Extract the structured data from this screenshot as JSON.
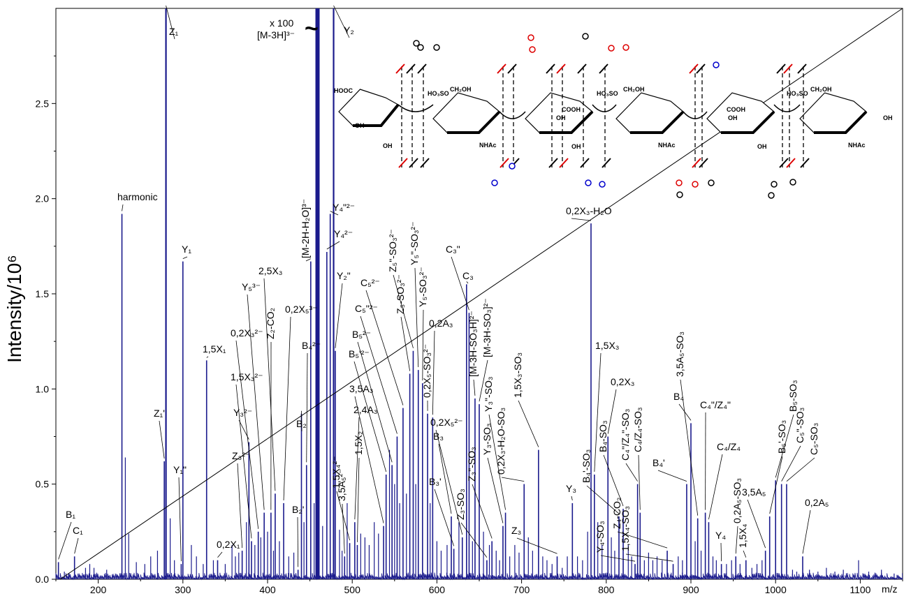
{
  "chart_data": {
    "type": "line",
    "ylabel": "Intensity/10⁶",
    "xunit": "m/z",
    "xlim": [
      150,
      1150
    ],
    "ylim": [
      0,
      3.0
    ],
    "xticks": [
      200,
      300,
      400,
      500,
      600,
      700,
      800,
      900,
      1000,
      1100
    ],
    "yticks": [
      0.0,
      0.5,
      1.0,
      1.5,
      2.0,
      2.5
    ],
    "line_color": "#1a1a8c",
    "peaks": [
      {
        "x": 153,
        "y": 0.09,
        "label": "B₁"
      },
      {
        "x": 172,
        "y": 0.12,
        "label": "C₁"
      },
      {
        "x": 228,
        "y": 1.92,
        "label": "harmonic"
      },
      {
        "x": 280,
        "y": 3.0,
        "label": "Z₁"
      },
      {
        "x": 278,
        "y": 0.62,
        "label": "Z₁'"
      },
      {
        "x": 298,
        "y": 0.08,
        "label": "Y₁\""
      },
      {
        "x": 300,
        "y": 1.67,
        "label": "Y₁"
      },
      {
        "x": 328,
        "y": 1.15,
        "label": "1,5X₁"
      },
      {
        "x": 341,
        "y": 0.1,
        "label": "0,2X₁"
      },
      {
        "x": 370,
        "y": 0.15,
        "label": "Z₃²⁻"
      },
      {
        "x": 378,
        "y": 0.72,
        "label": "Y₃²⁻"
      },
      {
        "x": 381,
        "y": 0.2,
        "label": "1,5X₃²⁻"
      },
      {
        "x": 389,
        "y": 0.25,
        "label": "0,2X₃²⁻"
      },
      {
        "x": 396,
        "y": 0.35,
        "label": "Y₅³⁻"
      },
      {
        "x": 404,
        "y": 0.35,
        "label": "Z₂-CO₂"
      },
      {
        "x": 409,
        "y": 0.45,
        "label": "2,5X₃"
      },
      {
        "x": 419,
        "y": 0.4,
        "label": "0,2X₅³⁻"
      },
      {
        "x": 436,
        "y": 0.05,
        "label": "B₂'"
      },
      {
        "x": 440,
        "y": 0.87,
        "label": "B₂"
      },
      {
        "x": 446,
        "y": 0.6,
        "label": "B₄²⁻"
      },
      {
        "x": 451,
        "y": 1.67,
        "label": "[M-2H-H₂O]³⁻"
      },
      {
        "x": 460,
        "y": 3.0,
        "label": "[M-3H]³⁻"
      },
      {
        "x": 470,
        "y": 1.72,
        "label": "Y₄²⁻"
      },
      {
        "x": 474,
        "y": 1.92,
        "label": "Y₄\"²⁻"
      },
      {
        "x": 478,
        "y": 3.0,
        "label": "Y₂"
      },
      {
        "x": 480,
        "y": 1.2,
        "label": "Y₂\""
      },
      {
        "x": 491,
        "y": 0.12,
        "label": "3,5A₅²⁻"
      },
      {
        "x": 497,
        "y": 0.19,
        "label": "1,5X₄²⁻"
      },
      {
        "x": 503,
        "y": 0.3,
        "label": "2,4A₃"
      },
      {
        "x": 506,
        "y": 0.18,
        "label": "1,5X₂"
      },
      {
        "x": 537,
        "y": 0.28,
        "label": "3,5A₃"
      },
      {
        "x": 540,
        "y": 0.55,
        "label": "B₅'²⁻"
      },
      {
        "x": 547,
        "y": 0.6,
        "label": "B₅²⁻"
      },
      {
        "x": 553,
        "y": 0.75,
        "label": "C₅\"²⁻"
      },
      {
        "x": 560,
        "y": 0.9,
        "label": "C₅²⁻"
      },
      {
        "x": 568,
        "y": 1.08,
        "label": "Z₅-SO₃²⁻"
      },
      {
        "x": 572,
        "y": 1.2,
        "label": "Z₅\"-SO₃²⁻"
      },
      {
        "x": 578,
        "y": 1.1,
        "label": "Y₅\"-SO₃²⁻"
      },
      {
        "x": 583,
        "y": 1.03,
        "label": "Y₅-SO₃²⁻"
      },
      {
        "x": 589,
        "y": 0.87,
        "label": "0,2X₅-SO₃²⁻"
      },
      {
        "x": 595,
        "y": 0.85,
        "label": "0,2A₃"
      },
      {
        "x": 617,
        "y": 0.33,
        "label": "B₃"
      },
      {
        "x": 620,
        "y": 0.16,
        "label": "B₃'"
      },
      {
        "x": 630,
        "y": 0.22,
        "label": "0,2X₅²⁻"
      },
      {
        "x": 635,
        "y": 1.55,
        "label": "C₃"
      },
      {
        "x": 638,
        "y": 1.4,
        "label": "C₃\""
      },
      {
        "x": 645,
        "y": 0.95,
        "label": "[M-3H-SO₃H]²⁻"
      },
      {
        "x": 650,
        "y": 0.92,
        "label": "[M-3H-SO₃]²⁻"
      },
      {
        "x": 659,
        "y": 0.1,
        "label": "Z₃-SO₃"
      },
      {
        "x": 665,
        "y": 0.2,
        "label": "Z₃\"-SO₃"
      },
      {
        "x": 678,
        "y": 0.28,
        "label": "Y₃-SO₃"
      },
      {
        "x": 681,
        "y": 0.35,
        "label": "Y₃\"-SO₃"
      },
      {
        "x": 703,
        "y": 0.5,
        "label": "0,2X₃-H₂O-SO₃"
      },
      {
        "x": 720,
        "y": 0.68,
        "label": "1,5X₃-SO₃"
      },
      {
        "x": 742,
        "y": 0.12,
        "label": "Z₃"
      },
      {
        "x": 760,
        "y": 0.4,
        "label": "Y₃"
      },
      {
        "x": 782,
        "y": 1.87,
        "label": "0,2X₃-H₂O"
      },
      {
        "x": 786,
        "y": 0.55,
        "label": "1,5X₃"
      },
      {
        "x": 802,
        "y": 0.75,
        "label": "0,2X₃"
      },
      {
        "x": 815,
        "y": 0.33,
        "label": "B₄'-SO₃"
      },
      {
        "x": 820,
        "y": 0.37,
        "label": "B₄-SO₃"
      },
      {
        "x": 834,
        "y": 0.08,
        "label": "Y₄-SO₃"
      },
      {
        "x": 837,
        "y": 0.5,
        "label": "C₄\"/Z₄\"-SO₃"
      },
      {
        "x": 840,
        "y": 0.35,
        "label": "C₄/Z₄-SO₃"
      },
      {
        "x": 872,
        "y": 0.15,
        "label": "Z₄-CO₂"
      },
      {
        "x": 879,
        "y": 0.08,
        "label": "1,5X₄-SO₃"
      },
      {
        "x": 895,
        "y": 0.5,
        "label": "B₄'"
      },
      {
        "x": 900,
        "y": 0.82,
        "label": "B₄"
      },
      {
        "x": 908,
        "y": 0.32,
        "label": "3,5A₅-SO₃"
      },
      {
        "x": 917,
        "y": 0.35,
        "label": "C₄\"/Z₄\""
      },
      {
        "x": 921,
        "y": 0.3,
        "label": "C₄/Z₄"
      },
      {
        "x": 936,
        "y": 0.08,
        "label": "Y₄"
      },
      {
        "x": 953,
        "y": 0.12,
        "label": "0,2A₅-SO₃"
      },
      {
        "x": 965,
        "y": 0.1,
        "label": "1,5X₄"
      },
      {
        "x": 988,
        "y": 0.15,
        "label": "3,5A₅"
      },
      {
        "x": 993,
        "y": 0.33,
        "label": "B₅'-SO₃"
      },
      {
        "x": 1000,
        "y": 0.52,
        "label": "B₅-SO₃"
      },
      {
        "x": 1007,
        "y": 0.5,
        "label": "C₅\"-SO₃"
      },
      {
        "x": 1013,
        "y": 0.5,
        "label": "C₅-SO₃"
      },
      {
        "x": 1032,
        "y": 0.12,
        "label": "0,2A₅"
      }
    ],
    "minor_peaks": [
      [
        160,
        0.04
      ],
      [
        165,
        0.03
      ],
      [
        185,
        0.06
      ],
      [
        190,
        0.08
      ],
      [
        195,
        0.06
      ],
      [
        210,
        0.05
      ],
      [
        232,
        0.64
      ],
      [
        236,
        0.24
      ],
      [
        245,
        0.09
      ],
      [
        255,
        0.08
      ],
      [
        262,
        0.12
      ],
      [
        270,
        0.15
      ],
      [
        285,
        0.32
      ],
      [
        290,
        0.1
      ],
      [
        310,
        0.18
      ],
      [
        316,
        0.12
      ],
      [
        324,
        0.08
      ],
      [
        336,
        0.1
      ],
      [
        350,
        0.08
      ],
      [
        358,
        0.18
      ],
      [
        362,
        0.12
      ],
      [
        366,
        0.14
      ],
      [
        375,
        0.3
      ],
      [
        385,
        0.18
      ],
      [
        392,
        0.22
      ],
      [
        400,
        0.25
      ],
      [
        407,
        0.15
      ],
      [
        414,
        0.2
      ],
      [
        425,
        0.12
      ],
      [
        431,
        0.14
      ],
      [
        443,
        0.3
      ],
      [
        455,
        0.4
      ],
      [
        465,
        0.28
      ],
      [
        485,
        0.26
      ],
      [
        488,
        0.15
      ],
      [
        494,
        0.4
      ],
      [
        510,
        0.24
      ],
      [
        515,
        0.22
      ],
      [
        520,
        0.18
      ],
      [
        526,
        0.3
      ],
      [
        531,
        0.24
      ],
      [
        544,
        0.68
      ],
      [
        550,
        0.5
      ],
      [
        556,
        0.4
      ],
      [
        564,
        0.45
      ],
      [
        575,
        0.5
      ],
      [
        592,
        0.4
      ],
      [
        600,
        0.2
      ],
      [
        605,
        0.15
      ],
      [
        612,
        0.18
      ],
      [
        626,
        0.3
      ],
      [
        642,
        0.2
      ],
      [
        655,
        0.25
      ],
      [
        662,
        0.18
      ],
      [
        670,
        0.15
      ],
      [
        674,
        0.1
      ],
      [
        686,
        0.12
      ],
      [
        692,
        0.18
      ],
      [
        697,
        0.14
      ],
      [
        708,
        0.22
      ],
      [
        713,
        0.15
      ],
      [
        725,
        0.12
      ],
      [
        730,
        0.1
      ],
      [
        736,
        0.08
      ],
      [
        748,
        0.06
      ],
      [
        754,
        0.12
      ],
      [
        766,
        0.12
      ],
      [
        772,
        0.1
      ],
      [
        778,
        0.25
      ],
      [
        790,
        0.3
      ],
      [
        795,
        0.18
      ],
      [
        806,
        0.22
      ],
      [
        810,
        0.15
      ],
      [
        826,
        0.18
      ],
      [
        830,
        0.12
      ],
      [
        845,
        0.1
      ],
      [
        850,
        0.14
      ],
      [
        855,
        0.1
      ],
      [
        860,
        0.12
      ],
      [
        866,
        0.1
      ],
      [
        885,
        0.12
      ],
      [
        890,
        0.1
      ],
      [
        905,
        0.2
      ],
      [
        912,
        0.15
      ],
      [
        926,
        0.12
      ],
      [
        930,
        0.1
      ],
      [
        942,
        0.08
      ],
      [
        948,
        0.1
      ],
      [
        958,
        0.08
      ],
      [
        972,
        0.06
      ],
      [
        978,
        0.08
      ],
      [
        984,
        0.1
      ],
      [
        1020,
        0.05
      ],
      [
        1025,
        0.04
      ],
      [
        1040,
        0.05
      ],
      [
        1050,
        0.04
      ],
      [
        1060,
        0.06
      ],
      [
        1070,
        0.04
      ],
      [
        1080,
        0.05
      ],
      [
        1098,
        0.1
      ],
      [
        1110,
        0.04
      ],
      [
        1125,
        0.05
      ],
      [
        1140,
        0.03
      ]
    ],
    "annotations": {
      "overlay_peak_scale": "x 100",
      "overlay_peak_label": "[M-3H]³⁻"
    }
  },
  "structure": {
    "labels": [
      "HOOC",
      "OH",
      "OH",
      "HO₃SO",
      "CH₂OH",
      "NHAc",
      "COOH",
      "OH",
      "OH",
      "HO₃SO",
      "CH₂OH",
      "NHAc",
      "COOH",
      "OH",
      "OH",
      "HO₃SO",
      "CH₂OH",
      "NHAc",
      "OH"
    ]
  }
}
